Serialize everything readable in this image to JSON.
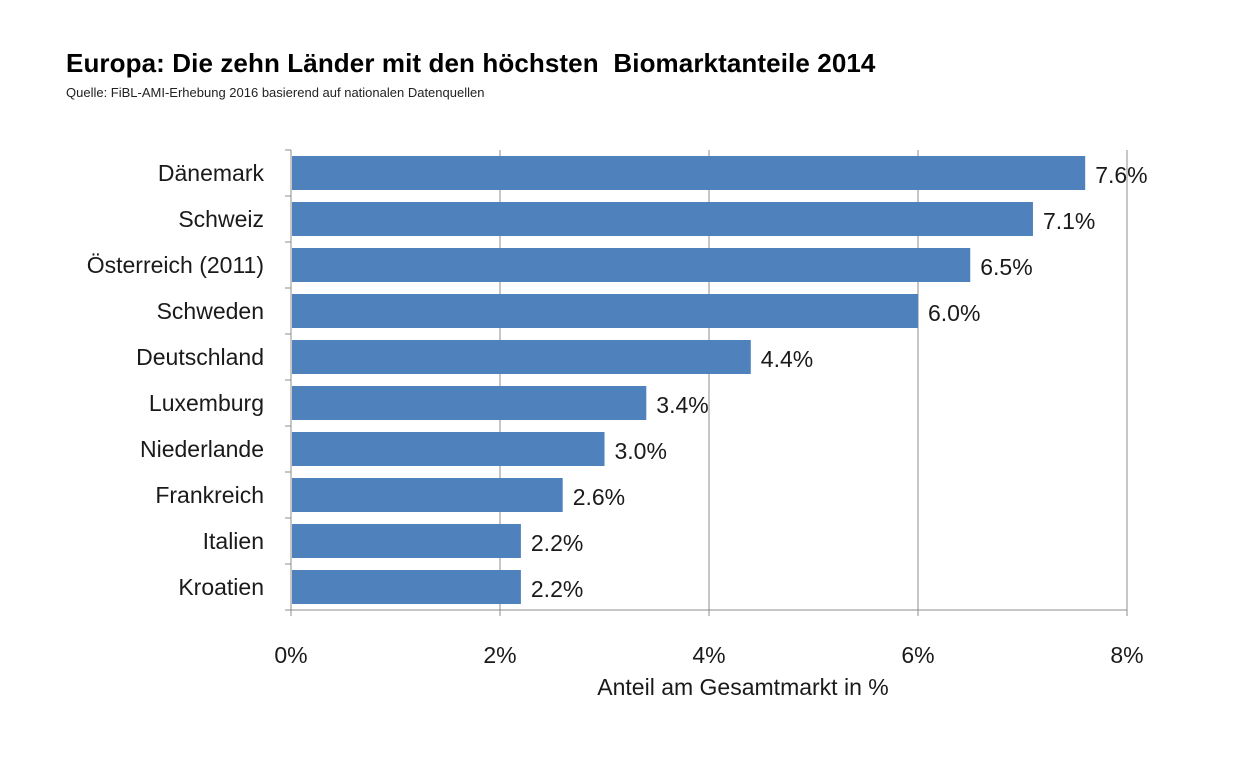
{
  "chart_data": {
    "type": "bar",
    "orientation": "horizontal",
    "title": "Europa: Die zehn Länder mit den höchsten  Biomarktanteile 2014",
    "subtitle": "Quelle: FiBL-AMI-Erhebung 2016 basierend auf nationalen Datenquellen",
    "categories": [
      "Dänemark",
      "Schweiz",
      "Österreich (2011)",
      "Schweden",
      "Deutschland",
      "Luxemburg",
      "Niederlande",
      "Frankreich",
      "Italien",
      "Kroatien"
    ],
    "values": [
      7.6,
      7.1,
      6.5,
      6.0,
      4.4,
      3.4,
      3.0,
      2.6,
      2.2,
      2.2
    ],
    "value_labels": [
      "7.6%",
      "7.1%",
      "6.5%",
      "6.0%",
      "4.4%",
      "3.4%",
      "3.0%",
      "2.6%",
      "2.2%",
      "2.2%"
    ],
    "xlim": [
      0,
      8
    ],
    "xticks": [
      0,
      2,
      4,
      6,
      8
    ],
    "xtick_labels": [
      "0%",
      "2%",
      "4%",
      "6%",
      "8%"
    ],
    "xlabel": "Anteil am Gesamtmarkt  in %",
    "ylabel": "",
    "grid": "vertical",
    "legend": "none",
    "bar_color": "#4f81bd",
    "grid_color": "#8c8c8c"
  }
}
